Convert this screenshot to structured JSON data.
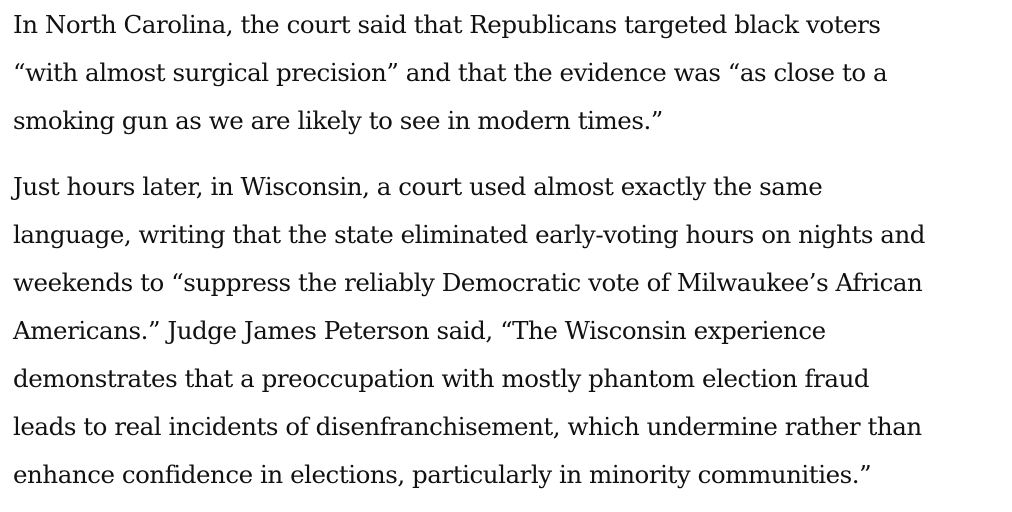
{
  "article": {
    "paragraphs": [
      {
        "lines": [
          "In North Carolina, the court said that Republicans targeted black voters",
          "“with almost surgical precision” and that the evidence was “as close to a",
          "smoking gun as we are likely to see in modern times.”"
        ]
      },
      {
        "lines": [
          "Just hours later, in Wisconsin, a court used almost exactly the same",
          "language, writing that the state eliminated early-voting hours on nights and",
          "weekends to “suppress the reliably Democratic vote of Milwaukee’s African",
          "Americans.” Judge James Peterson said, “The Wisconsin experience",
          "demonstrates that a preoccupation with mostly phantom election fraud",
          "leads to real incidents of disenfranchisement, which undermine rather than",
          "enhance confidence in elections, particularly in minority communities.”"
        ]
      }
    ]
  }
}
